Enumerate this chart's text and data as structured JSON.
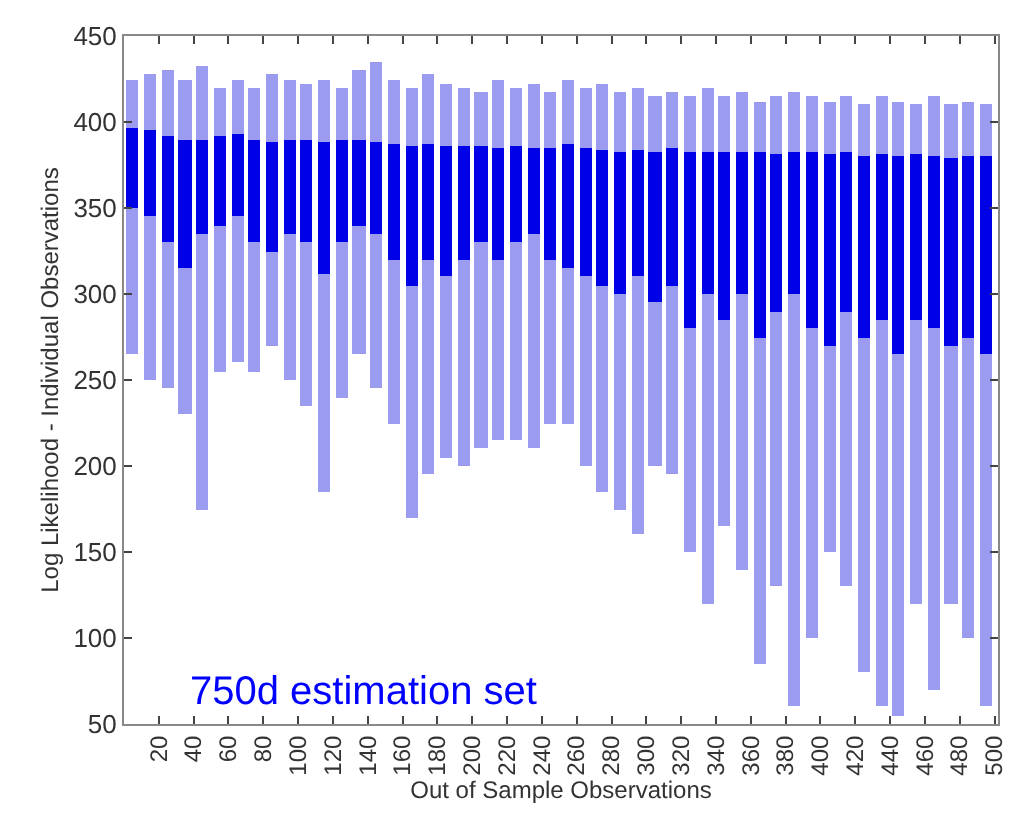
{
  "chart_data": {
    "type": "bar",
    "xlabel": "Out of Sample Observations",
    "ylabel": "Log Likelihood - Individual Observations",
    "annotations": [
      "750d estimation set"
    ],
    "x": [
      5,
      15,
      25,
      35,
      45,
      55,
      65,
      75,
      85,
      95,
      105,
      115,
      125,
      135,
      145,
      155,
      165,
      175,
      185,
      195,
      205,
      215,
      225,
      235,
      245,
      255,
      265,
      275,
      285,
      295,
      305,
      315,
      325,
      335,
      345,
      355,
      365,
      375,
      385,
      395,
      405,
      415,
      425,
      435,
      445,
      455,
      465,
      475,
      485,
      495
    ],
    "series": [
      {
        "color": "#9b9bf0",
        "base": [
          265,
          250,
          245,
          230,
          175,
          255,
          260,
          255,
          270,
          250,
          235,
          185,
          240,
          265,
          245,
          225,
          170,
          195,
          205,
          200,
          210,
          215,
          215,
          210,
          225,
          225,
          200,
          185,
          175,
          160,
          200,
          195,
          150,
          120,
          165,
          140,
          85,
          130,
          60,
          100,
          150,
          130,
          80,
          60,
          55,
          120,
          70,
          120,
          100,
          60
        ],
        "values": [
          160,
          178,
          185,
          195,
          257,
          165,
          165,
          165,
          158,
          175,
          187,
          240,
          180,
          165,
          190,
          200,
          250,
          233,
          217,
          220,
          208,
          210,
          205,
          212,
          193,
          200,
          220,
          237,
          243,
          260,
          215,
          223,
          265,
          300,
          250,
          278,
          327,
          285,
          358,
          315,
          262,
          285,
          330,
          355,
          357,
          290,
          345,
          290,
          312,
          350
        ]
      },
      {
        "color": "#0000e6",
        "base": [
          350,
          345,
          330,
          315,
          335,
          340,
          345,
          330,
          325,
          335,
          330,
          312,
          330,
          340,
          335,
          320,
          305,
          320,
          310,
          320,
          330,
          320,
          330,
          335,
          320,
          315,
          310,
          305,
          300,
          310,
          295,
          305,
          280,
          300,
          285,
          300,
          275,
          290,
          300,
          280,
          270,
          290,
          275,
          285,
          265,
          285,
          280,
          270,
          275,
          265
        ],
        "values": [
          47,
          50,
          62,
          75,
          55,
          52,
          48,
          60,
          63,
          54,
          60,
          76,
          59,
          50,
          53,
          67,
          81,
          67,
          76,
          66,
          56,
          65,
          56,
          50,
          65,
          72,
          75,
          79,
          83,
          74,
          88,
          80,
          103,
          83,
          97,
          83,
          107,
          91,
          82,
          102,
          111,
          92,
          105,
          96,
          115,
          96,
          100,
          109,
          105,
          115
        ]
      }
    ],
    "xlim": [
      0,
      502
    ],
    "xticks": [
      20,
      40,
      60,
      80,
      100,
      120,
      140,
      160,
      180,
      200,
      220,
      240,
      260,
      280,
      300,
      320,
      340,
      360,
      380,
      400,
      420,
      440,
      460,
      480,
      500
    ],
    "ylim": [
      50,
      450
    ],
    "yticks": [
      50,
      100,
      150,
      200,
      250,
      300,
      350,
      400,
      450
    ],
    "grid": false
  }
}
